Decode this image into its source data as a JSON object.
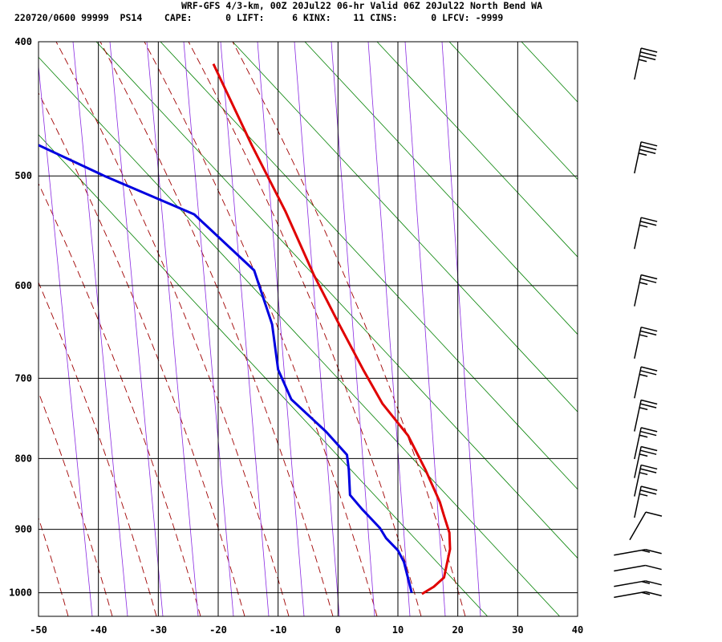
{
  "chart_data": {
    "type": "skew-t",
    "title": "WRF-GFS 4/3-km, 00Z 20Jul22 06-hr Valid 06Z 20Jul22 North Bend WA",
    "subtitle": "220720/0600 99999  PS14    CAPE:      0 LIFT:     6 KINX:    11 CINS:      0 LFCV: -9999",
    "xlabel": "",
    "ylabel": "",
    "xlim": [
      -50,
      40
    ],
    "ylim": [
      1040,
      400
    ],
    "x_ticks": [
      "-50",
      "-40",
      "-30",
      "-20",
      "-10",
      "0",
      "10",
      "20",
      "30",
      "40"
    ],
    "y_ticks": [
      "400",
      "500",
      "600",
      "700",
      "800",
      "900",
      "1000"
    ],
    "series": [
      {
        "name": "temperature",
        "color": "#e00000",
        "points": [
          [
            -20.8,
            415
          ],
          [
            -14.4,
            475
          ],
          [
            -8.8,
            530
          ],
          [
            -4.0,
            590
          ],
          [
            0.2,
            640
          ],
          [
            4.2,
            690
          ],
          [
            7.4,
            730
          ],
          [
            11.7,
            770
          ],
          [
            14.6,
            815
          ],
          [
            17.0,
            860
          ],
          [
            17.7,
            880
          ],
          [
            18.6,
            905
          ],
          [
            18.7,
            930
          ],
          [
            17.7,
            975
          ],
          [
            16.0,
            990
          ],
          [
            14.0,
            1002
          ]
        ]
      },
      {
        "name": "dewpoint",
        "color": "#0000e0",
        "points": [
          [
            -50.0,
            475
          ],
          [
            -39.0,
            500
          ],
          [
            -24.0,
            533
          ],
          [
            -14.0,
            585
          ],
          [
            -11.0,
            640
          ],
          [
            -10.0,
            690
          ],
          [
            -7.8,
            725
          ],
          [
            -2.0,
            765
          ],
          [
            1.5,
            795
          ],
          [
            1.8,
            815
          ],
          [
            2.0,
            850
          ],
          [
            4.0,
            870
          ],
          [
            7.0,
            898
          ],
          [
            8.0,
            913
          ],
          [
            10.0,
            932
          ],
          [
            11.0,
            950
          ],
          [
            12.3,
            1000
          ]
        ]
      }
    ],
    "background": {
      "isotherm_color": "#000000",
      "isobar_color": "#000000",
      "dry_adiabat_color": "#008000",
      "moist_adiabat_color": "#a00000",
      "mixing_ratio_color": "#8a2be2"
    },
    "wind_barbs": [
      {
        "p": 415,
        "knots": 25
      },
      {
        "p": 485,
        "knots": 25
      },
      {
        "p": 550,
        "knots": 15
      },
      {
        "p": 605,
        "knots": 15
      },
      {
        "p": 660,
        "knots": 15
      },
      {
        "p": 705,
        "knots": 15
      },
      {
        "p": 745,
        "knots": 15
      },
      {
        "p": 780,
        "knots": 15
      },
      {
        "p": 805,
        "knots": 15
      },
      {
        "p": 830,
        "knots": 15
      },
      {
        "p": 860,
        "knots": 15
      },
      {
        "p": 895,
        "knots": 10
      },
      {
        "p": 935,
        "knots": 5
      },
      {
        "p": 960,
        "knots": 10
      },
      {
        "p": 985,
        "knots": 5
      },
      {
        "p": 1003,
        "knots": 5
      }
    ]
  }
}
